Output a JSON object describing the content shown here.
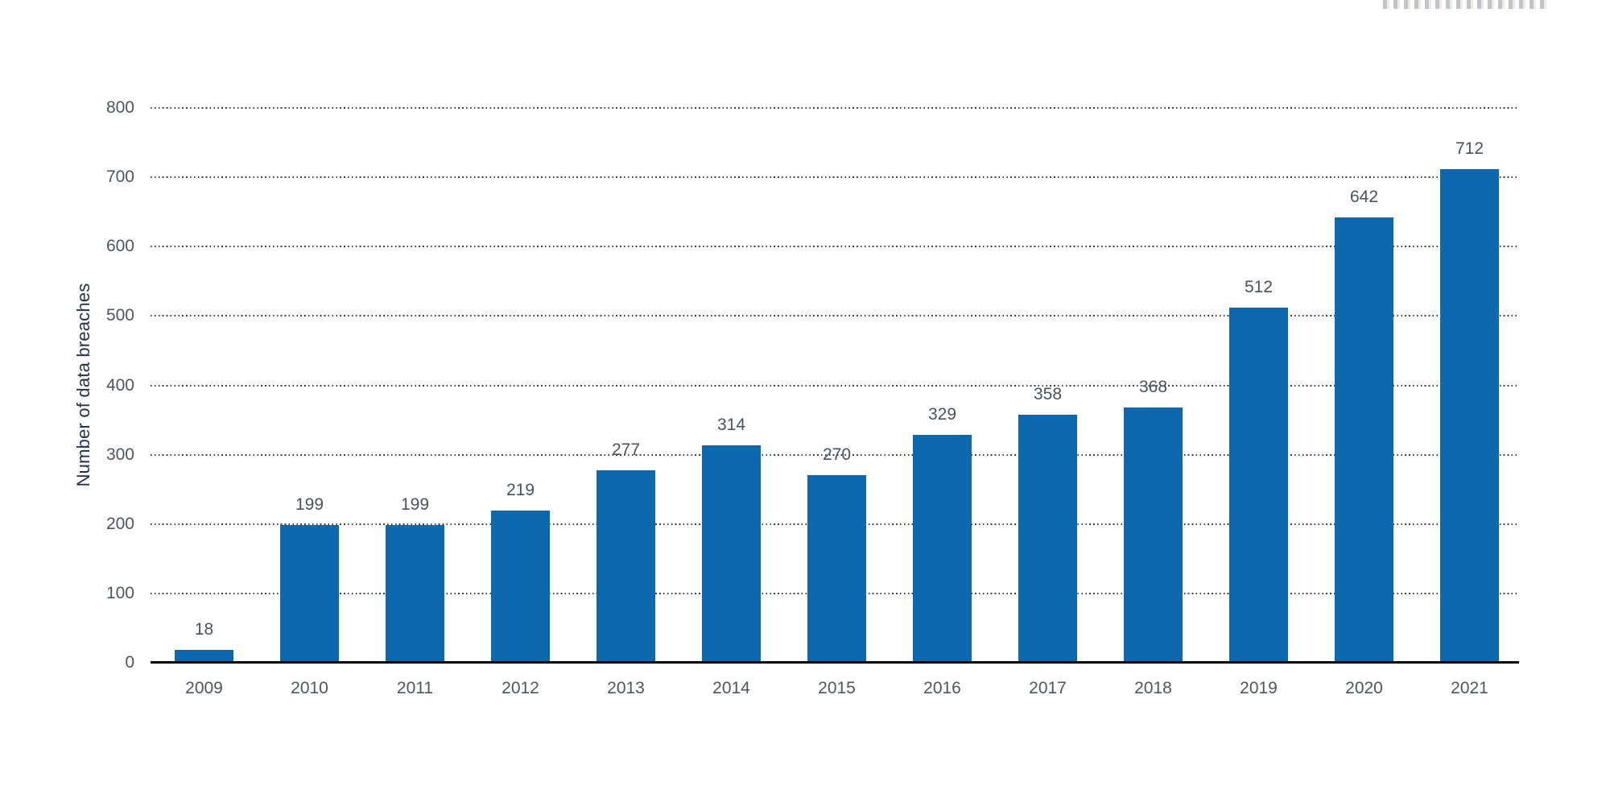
{
  "chart_data": {
    "type": "bar",
    "title": "",
    "xlabel": "",
    "ylabel": "Number of data breaches",
    "categories": [
      "2009",
      "2010",
      "2011",
      "2012",
      "2013",
      "2014",
      "2015",
      "2016",
      "2017",
      "2018",
      "2019",
      "2020",
      "2021"
    ],
    "values": [
      18,
      199,
      199,
      219,
      277,
      314,
      270,
      329,
      358,
      368,
      512,
      642,
      712
    ],
    "yticks": [
      0,
      100,
      200,
      300,
      400,
      500,
      600,
      700,
      800
    ],
    "ylim": [
      0,
      800
    ],
    "grid": "horizontal-dotted",
    "legend": "none",
    "value_labels": "above-bars",
    "colors": {
      "bar": "#0e68ad",
      "gridline": "#3e3e3e",
      "axis_line": "#000000",
      "tick_label": "#4d565f",
      "value_label": "#49525c",
      "axis_title": "#21334a",
      "background": "#ffffff"
    }
  }
}
